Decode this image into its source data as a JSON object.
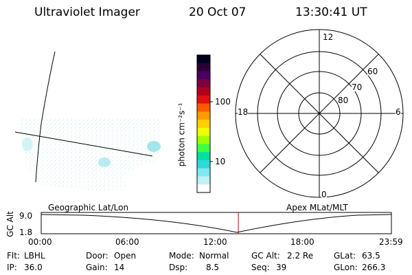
{
  "header": {
    "instrument": "Ultraviolet Imager",
    "date": "20 Oct 07",
    "time": "13:30:41 UT"
  },
  "colorbar": {
    "unit_label": "photon cm⁻²s⁻¹",
    "ticks": [
      "100",
      "10"
    ],
    "colors": [
      "#000020",
      "#2a0033",
      "#4a0060",
      "#7a0040",
      "#b00020",
      "#e01010",
      "#ff5a00",
      "#ff9a00",
      "#ffd000",
      "#f0ff00",
      "#a0ff00",
      "#40ff40",
      "#00e0a0",
      "#30d8d8",
      "#80e8f0",
      "#c0f0f8",
      "#ffffff"
    ]
  },
  "polar_plot": {
    "mlt_labels": [
      "12",
      "18",
      "6",
      "0"
    ],
    "lat_labels": [
      "60",
      "70",
      "80"
    ]
  },
  "timeline": {
    "y_axis_label": "GC Alt",
    "y_ticks": [
      "9.0",
      "1.8"
    ],
    "left_caption": "Geographic Lat/Lon",
    "right_caption": "Apex MLat/MLT",
    "x_ticks": [
      "00:00",
      "06:00",
      "12:00",
      "18:00",
      "23:59"
    ],
    "current_time_fraction": 0.563,
    "marker_color": "#c00000"
  },
  "info_panel": {
    "row1": [
      {
        "label": "Flt:",
        "value": "LBHL"
      },
      {
        "label": "Door:",
        "value": "Open"
      },
      {
        "label": "Mode:",
        "value": "Normal"
      },
      {
        "label": "GC Alt:",
        "value": "2.2 Re"
      },
      {
        "label": "GLat:",
        "value": "63.5"
      }
    ],
    "row2": [
      {
        "label": "IP:",
        "value": "36.0"
      },
      {
        "label": "Gain:",
        "value": "14"
      },
      {
        "label": "Dsp:",
        "value": "8.5"
      },
      {
        "label": "Seq:",
        "value": "39"
      },
      {
        "label": "GLon:",
        "value": "266.3"
      }
    ]
  }
}
